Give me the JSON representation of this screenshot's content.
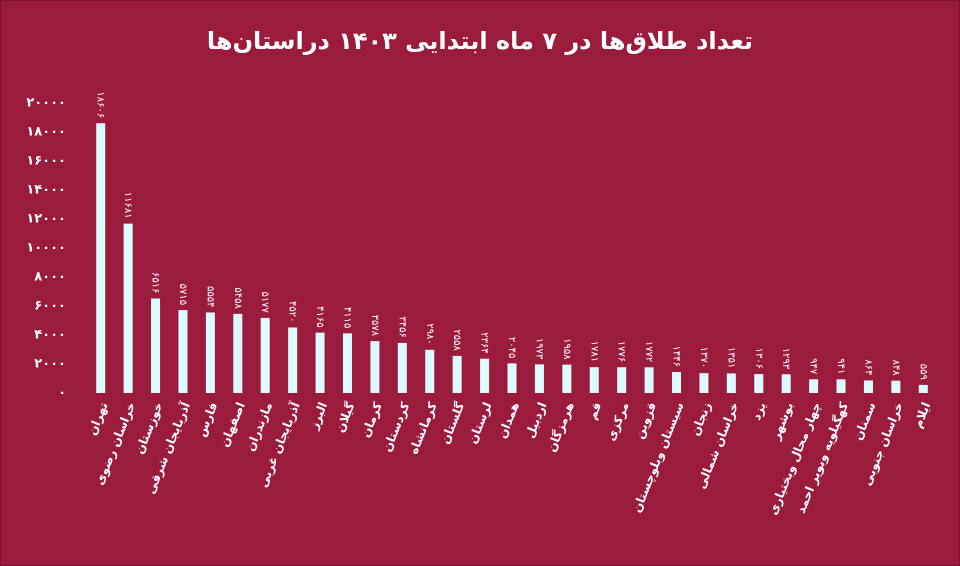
{
  "chart_data": {
    "type": "bar",
    "title": "تعداد طلاق‌ها در ۷ ماه ابتدایی ۱۴۰۳ دراستان‌ها",
    "categories": [
      "تهران",
      "خراسان رضوی",
      "خوزستان",
      "آذربایجان شرقی",
      "فارس",
      "اصفهان",
      "مازندران",
      "آذربایجان غربی",
      "البرز",
      "گیلان",
      "کرمان",
      "کردستان",
      "کرمانشاه",
      "گلستان",
      "لرستان",
      "همدان",
      "اردبیل",
      "هرمزگان",
      "قم",
      "مرکزی",
      "قزوین",
      "سیستان وبلوچستان",
      "زنجان",
      "خراسان شمالی",
      "یزد",
      "بوشهر",
      "چهار محال وبختیاری",
      "کهگیلویه وبویر احمد",
      "سمنان",
      "خراسان جنوبی",
      "ایلام"
    ],
    "values": [
      18606,
      11681,
      6516,
      5715,
      5554,
      5458,
      5177,
      4520,
      4165,
      4115,
      3578,
      3456,
      2980,
      2558,
      2364,
      2045,
      1973,
      1958,
      1781,
      1776,
      1772,
      1446,
      1370,
      1351,
      1306,
      1293,
      947,
      941,
      864,
      848,
      559
    ],
    "value_labels": [
      "۱۸۶۰۶",
      "۱۱۶۸۱",
      "۶۵۱۶",
      "۵۷۱۵",
      "۵۵۵۴",
      "۵۴۵۸",
      "۵۱۷۷",
      "۴۵۲۰",
      "۴۱۶۵",
      "۴۱۱۵",
      "۳۵۷۸",
      "۳۴۵۶",
      "۲۹۸۰",
      "۲۵۵۸",
      "۲۳۶۴",
      "۲۰۴۵",
      "۱۹۷۳",
      "۱۹۵۸",
      "۱۷۸۱",
      "۱۷۷۶",
      "۱۷۷۲",
      "۱۴۴۶",
      "۱۳۷۰",
      "۱۳۵۱",
      "۱۳۰۶",
      "۱۲۹۳",
      "۹۴۷",
      "۹۴۱",
      "۸۶۴",
      "۸۴۸",
      "۵۵۹"
    ],
    "color": "#dcfbff",
    "ylim": [
      0,
      20000
    ],
    "yticks": [
      {
        "value": 0,
        "label": "۰"
      },
      {
        "value": 2000,
        "label": "۲۰۰۰"
      },
      {
        "value": 4000,
        "label": "۴۰۰۰"
      },
      {
        "value": 6000,
        "label": "۶۰۰۰"
      },
      {
        "value": 8000,
        "label": "۸۰۰۰"
      },
      {
        "value": 10000,
        "label": "۱۰۰۰۰"
      },
      {
        "value": 12000,
        "label": "۱۲۰۰۰"
      },
      {
        "value": 14000,
        "label": "۱۴۰۰۰"
      },
      {
        "value": 16000,
        "label": "۱۶۰۰۰"
      },
      {
        "value": 18000,
        "label": "۱۸۰۰۰"
      },
      {
        "value": 20000,
        "label": "۲۰۰۰۰"
      }
    ],
    "grid": false
  }
}
